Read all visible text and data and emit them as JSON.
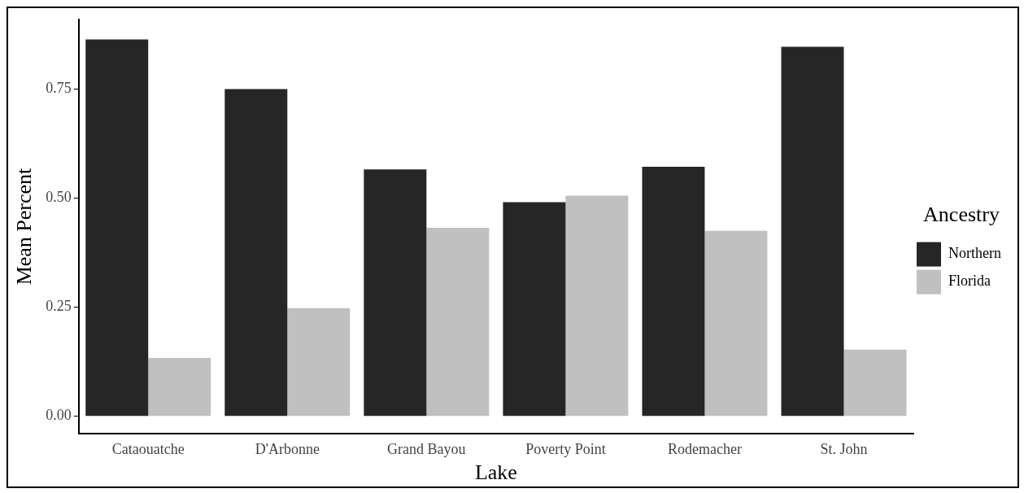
{
  "chart_data": {
    "type": "bar",
    "xlabel": "Lake",
    "ylabel": "Mean Percent",
    "legend_title": "Ancestry",
    "categories": [
      "Cataouatche",
      "D'Arbonne",
      "Grand Bayou",
      "Poverty Point",
      "Rodemacher",
      "St. John"
    ],
    "series": [
      {
        "name": "Northern",
        "color": "#262626",
        "values": [
          0.864,
          0.75,
          0.566,
          0.491,
          0.572,
          0.847
        ]
      },
      {
        "name": "Florida",
        "color": "#c0c0c0",
        "values": [
          0.134,
          0.248,
          0.432,
          0.506,
          0.425,
          0.153
        ]
      }
    ],
    "ylim": [
      -0.04,
      0.91
    ],
    "yticks": [
      {
        "value": 0,
        "label": "0.00"
      },
      {
        "value": 0.25,
        "label": "0.25"
      },
      {
        "value": 0.5,
        "label": "0.50"
      },
      {
        "value": 0.75,
        "label": "0.75"
      }
    ],
    "grid": false,
    "legend": "right"
  }
}
